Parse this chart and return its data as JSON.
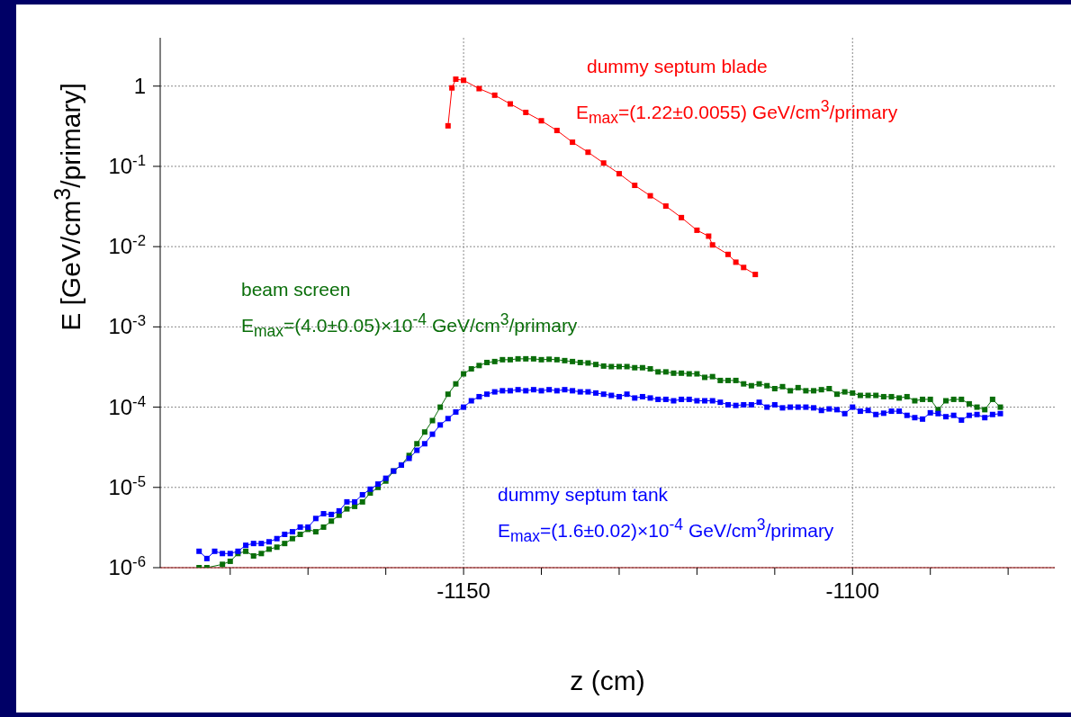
{
  "chart_data": {
    "type": "line",
    "xlabel": "z (cm)",
    "ylabel": "E  [GeV/cm$^{3}$/primary]",
    "log": "y",
    "grid": true,
    "marker": "square",
    "line_style": "solid",
    "xlim": [
      -1189,
      -1074
    ],
    "xticks": [
      {
        "value": -1180,
        "label": null
      },
      {
        "value": -1170,
        "label": null
      },
      {
        "value": -1160,
        "label": null
      },
      {
        "value": -1150,
        "label": "-1150"
      },
      {
        "value": -1140,
        "label": null
      },
      {
        "value": -1130,
        "label": null
      },
      {
        "value": -1120,
        "label": null
      },
      {
        "value": -1110,
        "label": null
      },
      {
        "value": -1100,
        "label": "-1100"
      },
      {
        "value": -1090,
        "label": null
      },
      {
        "value": -1080,
        "label": null
      }
    ],
    "ylim": [
      1e-06,
      4
    ],
    "yticks": [
      {
        "value": 1e-06,
        "label": "10$^{-6}$"
      },
      {
        "value": 1e-05,
        "label": "10$^{-5}$"
      },
      {
        "value": 0.0001,
        "label": "10$^{-4}$"
      },
      {
        "value": 0.001,
        "label": "10$^{-3}$"
      },
      {
        "value": 0.01,
        "label": "10$^{-2}$"
      },
      {
        "value": 0.1,
        "label": "10$^{-1}$"
      },
      1
    ],
    "x": [
      -1184,
      -1183,
      -1182,
      -1181,
      -1180,
      -1179,
      -1178,
      -1177,
      -1176,
      -1175,
      -1174,
      -1173,
      -1172,
      -1171,
      -1170,
      -1169,
      -1168,
      -1167,
      -1166,
      -1165,
      -1164,
      -1163,
      -1162,
      -1161,
      -1160,
      -1159,
      -1158,
      -1157,
      -1156,
      -1155,
      -1154,
      -1153,
      -1152,
      -1151,
      -1150,
      -1149,
      -1148,
      -1147,
      -1146,
      -1145,
      -1144,
      -1143,
      -1142,
      -1141,
      -1140,
      -1139,
      -1138,
      -1137,
      -1136,
      -1135,
      -1134,
      -1133,
      -1132,
      -1131,
      -1130,
      -1129,
      -1128,
      -1127,
      -1126,
      -1125,
      -1124,
      -1123,
      -1122,
      -1121,
      -1120,
      -1119,
      -1118,
      -1117,
      -1116,
      -1115,
      -1114,
      -1113,
      -1112,
      -1111,
      -1110,
      -1109,
      -1108,
      -1107,
      -1106,
      -1105,
      -1104,
      -1103,
      -1102,
      -1101,
      -1100,
      -1099,
      -1098,
      -1097,
      -1096,
      -1095,
      -1094,
      -1093,
      -1092,
      -1091,
      -1090,
      -1089,
      -1088,
      -1087,
      -1086,
      -1085,
      -1084,
      -1083,
      -1082,
      -1081
    ],
    "series": [
      {
        "name": "dummy septum blade",
        "color": "#ff0000",
        "x": [
          -1152,
          -1151.5,
          -1151,
          -1150,
          -1148,
          -1146,
          -1144,
          -1142,
          -1140,
          -1138,
          -1136,
          -1134,
          -1132,
          -1130,
          -1128,
          -1126,
          -1124,
          -1122,
          -1120,
          -1118.5,
          -1118,
          -1116,
          -1115,
          -1114,
          -1112.5
        ],
        "values": [
          0.32,
          0.95,
          1.22,
          1.18,
          0.93,
          0.77,
          0.6,
          0.47,
          0.37,
          0.28,
          0.2,
          0.15,
          0.11,
          0.081,
          0.058,
          0.043,
          0.032,
          0.023,
          0.016,
          0.0135,
          0.0105,
          0.008,
          0.0064,
          0.0055,
          0.0045
        ]
      },
      {
        "name": "beam screen",
        "color": "#0a6e0a",
        "values": [
          1e-06,
          1e-06,
          null,
          1.1e-06,
          1.2e-06,
          1.5e-06,
          1.6e-06,
          1.4e-06,
          1.5e-06,
          1.7e-06,
          1.8e-06,
          2e-06,
          2.3e-06,
          2.6e-06,
          3e-06,
          2.8e-06,
          3.2e-06,
          3.8e-06,
          4.5e-06,
          5.4e-06,
          5.8e-06,
          6.6e-06,
          8.5e-06,
          1e-05,
          1.2e-05,
          1.6e-05,
          1.9e-05,
          2.5e-05,
          3.5e-05,
          4.9e-05,
          6.8e-05,
          0.0001,
          0.000145,
          0.000195,
          0.00026,
          0.0003,
          0.00033,
          0.00036,
          0.00037,
          0.00039,
          0.00039,
          0.0004,
          0.0004,
          0.0004,
          0.00039,
          0.000395,
          0.00039,
          0.00038,
          0.00037,
          0.00036,
          0.000355,
          0.00034,
          0.000325,
          0.00032,
          0.00032,
          0.00032,
          0.00031,
          0.00031,
          0.0003,
          0.000275,
          0.000275,
          0.000265,
          0.000265,
          0.00026,
          0.00026,
          0.000235,
          0.00024,
          0.000215,
          0.000215,
          0.000215,
          0.000195,
          0.000185,
          0.000195,
          0.000185,
          0.00017,
          0.00018,
          0.00016,
          0.000175,
          0.00016,
          0.00016,
          0.000165,
          0.00017,
          0.000145,
          0.000155,
          0.00015,
          0.00014,
          0.00014,
          0.00014,
          0.000135,
          0.000135,
          0.00013,
          0.000135,
          0.00012,
          0.000125,
          0.000125,
          9.3e-05,
          0.00012,
          0.000125,
          0.000125,
          0.00011,
          0.0001,
          9.3e-05,
          0.000125,
          0.0001
        ]
      },
      {
        "name": "dummy septum tank",
        "color": "#0000ff",
        "values": [
          1.6e-06,
          1.3e-06,
          1.6e-06,
          1.5e-06,
          1.5e-06,
          1.6e-06,
          1.9e-06,
          2e-06,
          2e-06,
          2.1e-06,
          2.3e-06,
          2.6e-06,
          2.8e-06,
          3.2e-06,
          3.2e-06,
          4.1e-06,
          4.7e-06,
          4.6e-06,
          5.1e-06,
          6.6e-06,
          6.6e-06,
          8.1e-06,
          9.5e-06,
          1.1e-05,
          1.3e-05,
          1.6e-05,
          1.9e-05,
          2.3e-05,
          2.9e-05,
          3.5e-05,
          4.6e-05,
          6e-05,
          7.2e-05,
          8.7e-05,
          0.0001,
          0.00012,
          0.000135,
          0.000145,
          0.000155,
          0.00016,
          0.00016,
          0.000165,
          0.00016,
          0.000165,
          0.00016,
          0.000165,
          0.00016,
          0.000165,
          0.00016,
          0.000155,
          0.000155,
          0.00015,
          0.000145,
          0.00014,
          0.000135,
          0.000145,
          0.00013,
          0.000135,
          0.00013,
          0.000125,
          0.000125,
          0.00012,
          0.000125,
          0.000125,
          0.00012,
          0.00012,
          0.00012,
          0.000115,
          0.000107,
          0.000105,
          0.000107,
          0.000107,
          0.000115,
          0.0001,
          0.000107,
          9.8e-05,
          0.0001,
          0.0001,
          0.0001,
          9.8e-05,
          9.1e-05,
          9.5e-05,
          9.3e-05,
          8.3e-05,
          0.0001,
          8.9e-05,
          9.1e-05,
          8.1e-05,
          8.4e-05,
          8.9e-05,
          8.9e-05,
          7.9e-05,
          7.4e-05,
          7.1e-05,
          8.5e-05,
          8.3e-05,
          7.6e-05,
          7.9e-05,
          6.9e-05,
          7.9e-05,
          8.1e-05,
          7.4e-05,
          8.1e-05,
          8.3e-05
        ]
      }
    ],
    "annotations": [
      "E$_{max}$=(1.22±0.0055) GeV/cm$^{3}$/primary",
      "E$_{max}$=(4.0±0.05)×10$^{-4}$ GeV/cm$^{3}$/primary",
      "E$_{max}$=(1.6±0.02)×10$^{-4}$ GeV/cm$^{3}$/primary"
    ]
  }
}
